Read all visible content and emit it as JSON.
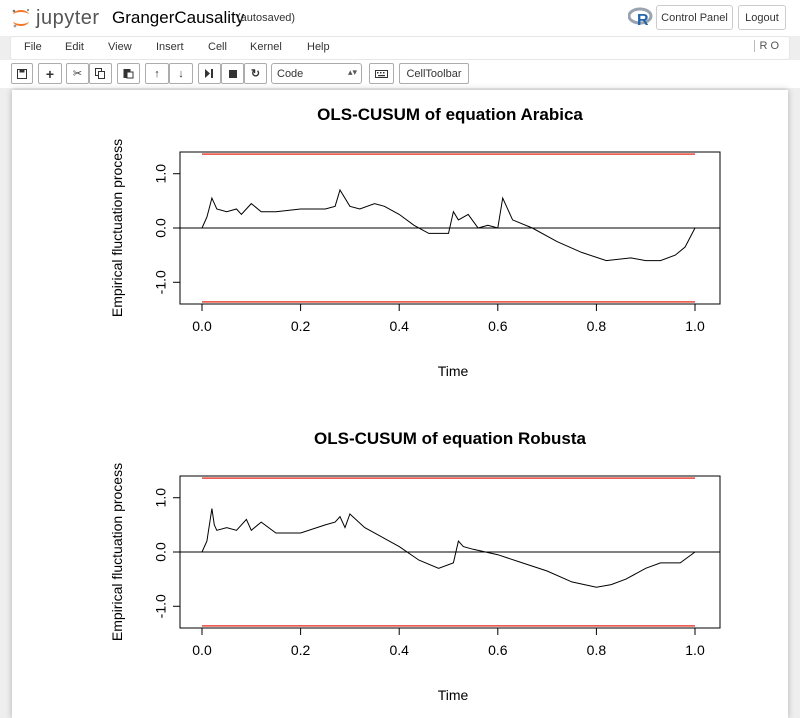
{
  "header": {
    "logo_text": "jupyter",
    "notebook_name": "GrangerCausality",
    "autosave_status": "(autosaved)",
    "control_panel_label": "Control Panel",
    "logout_label": "Logout"
  },
  "menubar": {
    "items": [
      "File",
      "Edit",
      "View",
      "Insert",
      "Cell",
      "Kernel",
      "Help"
    ],
    "kernel_indicator": "R O"
  },
  "toolbar": {
    "cell_type": "Code",
    "celltoolbar_label": "CellToolbar",
    "icons": [
      "save-icon",
      "add-cell-icon",
      "cut-icon",
      "copy-icon",
      "paste-icon",
      "move-up-icon",
      "move-down-icon",
      "run-icon",
      "stop-icon",
      "restart-icon",
      "keyboard-icon"
    ]
  },
  "colors": {
    "boundary": "#e8473b",
    "line": "#000000",
    "brand_orange": "#f37726"
  },
  "chart_data": [
    {
      "type": "line",
      "title": "OLS-CUSUM of equation Arabica",
      "xlabel": "Time",
      "ylabel": "Empirical fluctuation process",
      "xlim": [
        0,
        1
      ],
      "ylim": [
        -1.4,
        1.4
      ],
      "xticks": [
        "0.0",
        "0.2",
        "0.4",
        "0.6",
        "0.8",
        "1.0"
      ],
      "yticks": [
        "-1.0",
        "0.0",
        "1.0"
      ],
      "boundaries": [
        1.36,
        -1.36
      ],
      "reference_line": 0,
      "series": [
        {
          "x": [
            0.0,
            0.01,
            0.02,
            0.03,
            0.05,
            0.07,
            0.08,
            0.1,
            0.12,
            0.15,
            0.2,
            0.25,
            0.27,
            0.28,
            0.3,
            0.32,
            0.35,
            0.37,
            0.4,
            0.43,
            0.46,
            0.5,
            0.51,
            0.52,
            0.54,
            0.56,
            0.58,
            0.6,
            0.61,
            0.63,
            0.67,
            0.72,
            0.77,
            0.82,
            0.87,
            0.9,
            0.93,
            0.96,
            0.98,
            1.0
          ],
          "y": [
            0.0,
            0.2,
            0.55,
            0.35,
            0.3,
            0.35,
            0.25,
            0.45,
            0.3,
            0.3,
            0.35,
            0.35,
            0.4,
            0.7,
            0.4,
            0.35,
            0.45,
            0.4,
            0.25,
            0.05,
            -0.1,
            -0.1,
            0.3,
            0.15,
            0.25,
            0.0,
            0.05,
            0.0,
            0.55,
            0.15,
            0.0,
            -0.25,
            -0.45,
            -0.6,
            -0.55,
            -0.6,
            -0.6,
            -0.5,
            -0.35,
            0.0
          ]
        }
      ]
    },
    {
      "type": "line",
      "title": "OLS-CUSUM of equation Robusta",
      "xlabel": "Time",
      "ylabel": "Empirical fluctuation process",
      "xlim": [
        0,
        1
      ],
      "ylim": [
        -1.4,
        1.4
      ],
      "xticks": [
        "0.0",
        "0.2",
        "0.4",
        "0.6",
        "0.8",
        "1.0"
      ],
      "yticks": [
        "-1.0",
        "0.0",
        "1.0"
      ],
      "boundaries": [
        1.36,
        -1.36
      ],
      "reference_line": 0,
      "series": [
        {
          "x": [
            0.0,
            0.01,
            0.02,
            0.025,
            0.03,
            0.05,
            0.07,
            0.09,
            0.1,
            0.12,
            0.15,
            0.2,
            0.25,
            0.27,
            0.28,
            0.29,
            0.3,
            0.33,
            0.36,
            0.4,
            0.44,
            0.48,
            0.51,
            0.52,
            0.53,
            0.55,
            0.6,
            0.65,
            0.7,
            0.75,
            0.8,
            0.83,
            0.86,
            0.9,
            0.93,
            0.97,
            1.0
          ],
          "y": [
            0.0,
            0.2,
            0.8,
            0.5,
            0.4,
            0.45,
            0.4,
            0.6,
            0.4,
            0.55,
            0.35,
            0.35,
            0.5,
            0.55,
            0.65,
            0.45,
            0.7,
            0.45,
            0.3,
            0.1,
            -0.15,
            -0.3,
            -0.2,
            0.2,
            0.1,
            0.05,
            -0.05,
            -0.2,
            -0.35,
            -0.55,
            -0.65,
            -0.6,
            -0.5,
            -0.3,
            -0.2,
            -0.2,
            0.0
          ]
        }
      ]
    }
  ]
}
